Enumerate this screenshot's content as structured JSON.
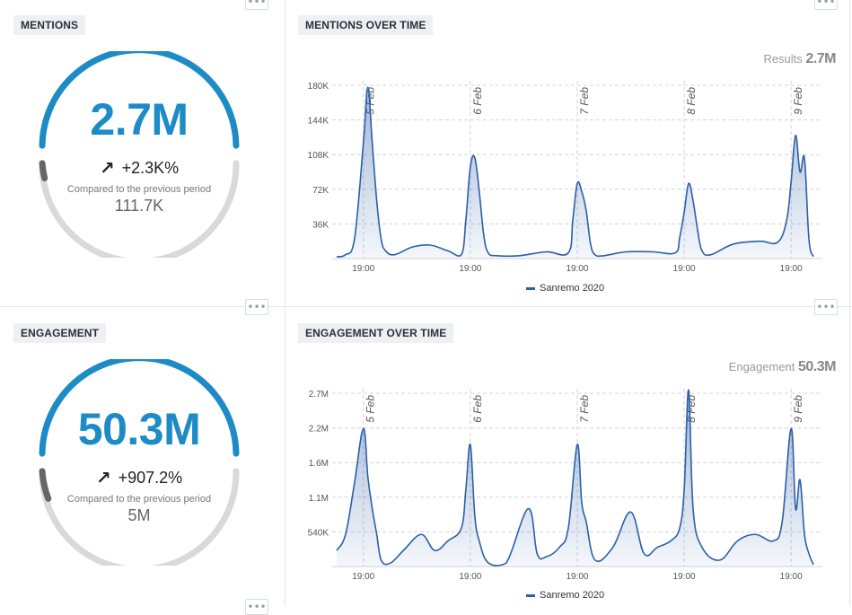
{
  "panels": {
    "mentions": {
      "tag": "MENTIONS",
      "value": "2.7M",
      "delta": "+2.3K%",
      "compare_label": "Compared to the previous period",
      "previous": "111.7K"
    },
    "mentions_chart": {
      "tag": "MENTIONS OVER TIME",
      "results_label": "Results",
      "results_value": "2.7M"
    },
    "engagement": {
      "tag": "ENGAGEMENT",
      "value": "50.3M",
      "delta": "+907.2%",
      "compare_label": "Compared to the previous period",
      "previous": "5M"
    },
    "engagement_chart": {
      "tag": "ENGAGEMENT OVER TIME",
      "results_label": "Engagement",
      "results_value": "50.3M"
    }
  },
  "more_button_label": "•••",
  "icons": {
    "delta": "arrow-up-right-icon",
    "more": "more-dots-icon"
  },
  "colors": {
    "accent": "#1c8bc6",
    "series": "#2c5fa8",
    "ring_track": "#d9d9d9",
    "ring_prev": "#666666"
  },
  "chart_data": [
    {
      "type": "area",
      "title": "MENTIONS OVER TIME",
      "x_tick_labels": [
        "19:00",
        "19:00",
        "19:00",
        "19:00",
        "19:00"
      ],
      "day_markers": [
        "5 Feb",
        "6 Feb",
        "7 Feb",
        "8 Feb",
        "9 Feb"
      ],
      "y_tick_labels": [
        "36K",
        "72K",
        "108K",
        "144K",
        "180K"
      ],
      "ylim": [
        0,
        180000
      ],
      "grid": true,
      "legend_position": "bottom-center",
      "x": [
        "5 Feb 13:00",
        "5 Feb 15:00",
        "5 Feb 17:00",
        "5 Feb 19:00",
        "5 Feb 20:00",
        "5 Feb 21:00",
        "5 Feb 22:00",
        "5 Feb 23:00",
        "6 Feb 00:00",
        "6 Feb 02:00",
        "6 Feb 06:00",
        "6 Feb 10:00",
        "6 Feb 14:00",
        "6 Feb 17:00",
        "6 Feb 18:00",
        "6 Feb 19:00",
        "6 Feb 20:00",
        "6 Feb 21:00",
        "6 Feb 22:00",
        "6 Feb 23:00",
        "7 Feb 01:00",
        "7 Feb 06:00",
        "7 Feb 12:00",
        "7 Feb 17:00",
        "7 Feb 18:00",
        "7 Feb 19:00",
        "7 Feb 20:00",
        "7 Feb 21:00",
        "7 Feb 22:00",
        "7 Feb 23:00",
        "8 Feb 01:00",
        "8 Feb 06:00",
        "8 Feb 12:00",
        "8 Feb 17:00",
        "8 Feb 18:00",
        "8 Feb 19:00",
        "8 Feb 20:00",
        "8 Feb 21:00",
        "8 Feb 22:00",
        "8 Feb 23:00",
        "9 Feb 01:00",
        "9 Feb 06:00",
        "9 Feb 12:00",
        "9 Feb 16:00",
        "9 Feb 18:00",
        "9 Feb 19:00",
        "9 Feb 20:00",
        "9 Feb 21:00",
        "9 Feb 22:00",
        "9 Feb 23:00",
        "10 Feb 00:00"
      ],
      "series": [
        {
          "name": "Sanremo 2020",
          "values": [
            2000,
            4000,
            20000,
            120000,
            178000,
            120000,
            60000,
            20000,
            8000,
            4000,
            12000,
            14000,
            8000,
            4000,
            40000,
            95000,
            105000,
            70000,
            25000,
            6000,
            3000,
            3000,
            7000,
            6000,
            40000,
            78000,
            70000,
            50000,
            15000,
            4000,
            3000,
            7000,
            7000,
            6000,
            22000,
            48000,
            78000,
            60000,
            30000,
            8000,
            4000,
            15000,
            18000,
            17000,
            40000,
            80000,
            128000,
            90000,
            104000,
            20000,
            2000
          ]
        }
      ]
    },
    {
      "type": "area",
      "title": "ENGAGEMENT OVER TIME",
      "x_tick_labels": [
        "19:00",
        "19:00",
        "19:00",
        "19:00",
        "19:00"
      ],
      "day_markers": [
        "5 Feb",
        "6 Feb",
        "7 Feb",
        "8 Feb",
        "9 Feb"
      ],
      "y_tick_labels": [
        "540K",
        "1.1M",
        "1.6M",
        "2.2M",
        "2.7M"
      ],
      "ylim": [
        0,
        2700000
      ],
      "grid": true,
      "legend_position": "bottom-center",
      "x": [
        "5 Feb 13:00",
        "5 Feb 15:00",
        "5 Feb 17:00",
        "5 Feb 19:00",
        "5 Feb 20:00",
        "5 Feb 21:00",
        "5 Feb 22:00",
        "5 Feb 23:00",
        "6 Feb 01:00",
        "6 Feb 04:00",
        "6 Feb 08:00",
        "6 Feb 11:00",
        "6 Feb 14:00",
        "6 Feb 17:00",
        "6 Feb 18:00",
        "6 Feb 19:00",
        "6 Feb 20:00",
        "6 Feb 21:00",
        "6 Feb 23:00",
        "7 Feb 03:00",
        "7 Feb 08:00",
        "7 Feb 10:00",
        "7 Feb 12:00",
        "7 Feb 15:00",
        "7 Feb 17:00",
        "7 Feb 19:00",
        "7 Feb 20:00",
        "7 Feb 21:00",
        "7 Feb 23:00",
        "8 Feb 03:00",
        "8 Feb 07:00",
        "8 Feb 10:00",
        "8 Feb 13:00",
        "8 Feb 16:00",
        "8 Feb 18:00",
        "8 Feb 19:00",
        "8 Feb 20:00",
        "8 Feb 21:00",
        "8 Feb 23:00",
        "9 Feb 03:00",
        "9 Feb 07:00",
        "9 Feb 11:00",
        "9 Feb 15:00",
        "9 Feb 17:00",
        "9 Feb 19:00",
        "9 Feb 20:00",
        "9 Feb 21:00",
        "9 Feb 22:00",
        "9 Feb 23:00",
        "10 Feb 00:00"
      ],
      "series": [
        {
          "name": "Sanremo 2020",
          "values": [
            250000,
            500000,
            1300000,
            2150000,
            1400000,
            900000,
            500000,
            100000,
            50000,
            250000,
            500000,
            250000,
            400000,
            600000,
            1200000,
            1900000,
            800000,
            400000,
            60000,
            50000,
            900000,
            200000,
            150000,
            300000,
            600000,
            1900000,
            1000000,
            700000,
            100000,
            300000,
            850000,
            200000,
            300000,
            400000,
            600000,
            1200000,
            2750000,
            900000,
            300000,
            100000,
            400000,
            500000,
            400000,
            700000,
            2150000,
            900000,
            1350000,
            500000,
            200000,
            30000
          ]
        }
      ]
    }
  ]
}
